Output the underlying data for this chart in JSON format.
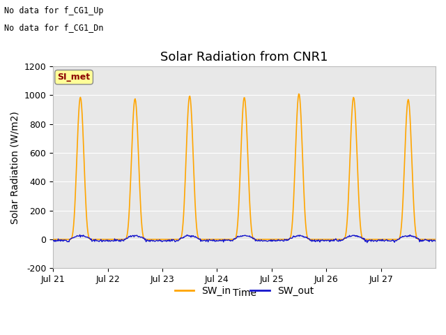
{
  "title": "Solar Radiation from CNR1",
  "xlabel": "Time",
  "ylabel": "Solar Radiation (W/m2)",
  "ylim": [
    -200,
    1200
  ],
  "xlim": [
    0,
    7
  ],
  "x_tick_labels": [
    "Jul 21",
    "Jul 22",
    "Jul 23",
    "Jul 24",
    "Jul 25",
    "Jul 26",
    "Jul 27"
  ],
  "x_tick_positions": [
    0,
    1,
    2,
    3,
    4,
    5,
    6
  ],
  "yticks": [
    -200,
    0,
    200,
    400,
    600,
    800,
    1000,
    1200
  ],
  "sw_in_color": "#FFA500",
  "sw_out_color": "#1414CC",
  "day_peaks": [
    985,
    975,
    995,
    985,
    1010,
    985,
    970
  ],
  "plot_bg_color": "#E8E8E8",
  "no_data_text1": "No data for f_CG1_Up",
  "no_data_text2": "No data for f_CG1_Dn",
  "si_met_label": "SI_met",
  "legend_sw_in": "SW_in",
  "legend_sw_out": "SW_out",
  "title_fontsize": 13,
  "axis_fontsize": 10,
  "tick_fontsize": 9,
  "day_start": 0.3,
  "day_end": 0.7,
  "sharpness": 4.0
}
